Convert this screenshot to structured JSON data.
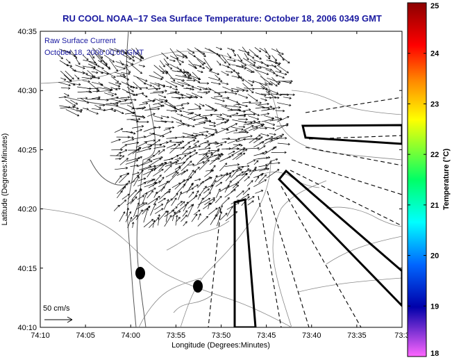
{
  "title": "RU COOL  NOAA–17  Sea Surface Temperature:  October 18, 2006 0349 GMT",
  "annotation": {
    "line1": "Raw Surface Current",
    "line2": "October 18, 2006 00:00 GMT"
  },
  "scale_arrow_label": "50 cm/s",
  "x_axis": {
    "label": "Longitude (Degrees:Minutes)",
    "ticks": [
      "74:10",
      "74:05",
      "74:00",
      "73:55",
      "73:50",
      "73:45",
      "73:40",
      "73:35",
      "73:3"
    ]
  },
  "y_axis": {
    "label": "Latitude (Degrees:Minutes)",
    "ticks": [
      "40:35",
      "40:30",
      "40:25",
      "40:20",
      "40:15",
      "40:10"
    ]
  },
  "colorbar": {
    "label": "Temperature (°C)",
    "ticks": [
      "25",
      "24",
      "23",
      "22",
      "21",
      "20",
      "19",
      "18"
    ],
    "colors": [
      "#8b0000",
      "#ff0000",
      "#ff8800",
      "#ffff00",
      "#00ff66",
      "#00ffff",
      "#0066ff",
      "#0000aa",
      "#ff66ff"
    ]
  }
}
